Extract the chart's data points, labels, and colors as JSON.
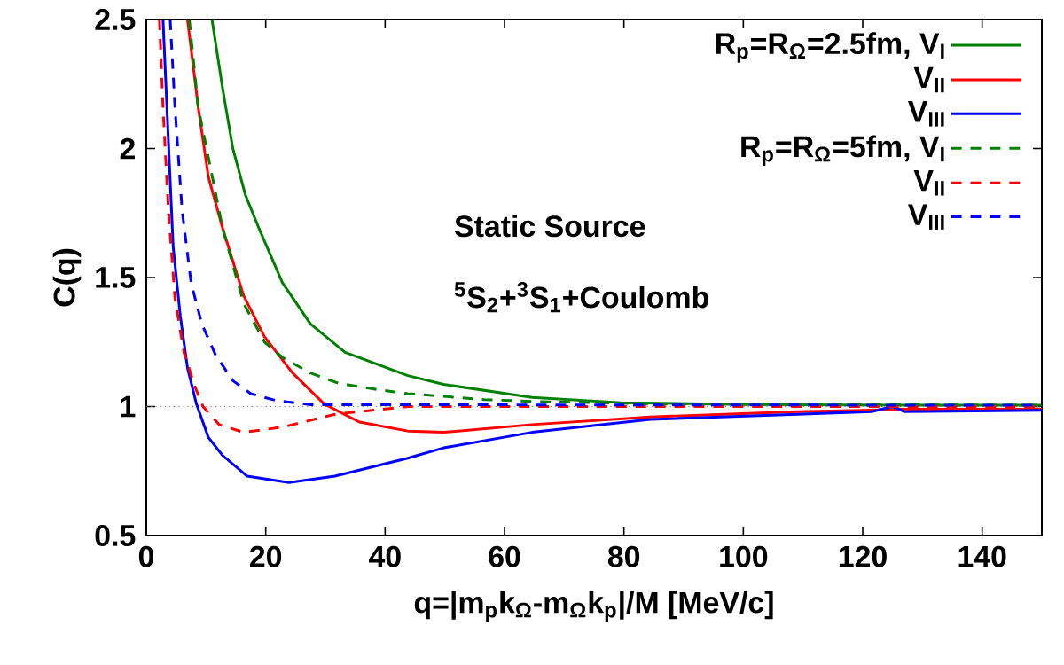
{
  "chart_data": {
    "type": "line",
    "xlabel": "q=|m$_{p}$k$_{Ω}$-m$_{Ω}$k$_{p}$|/M [MeV/c]",
    "ylabel": "C(q)",
    "xlim": [
      0,
      150
    ],
    "ylim": [
      0.5,
      2.5
    ],
    "xticks": [
      0,
      20,
      40,
      60,
      80,
      100,
      120,
      140
    ],
    "yticks": [
      0.5,
      1,
      1.5,
      2,
      2.5
    ],
    "grid": false,
    "legend": "top right",
    "annotations": [
      "Static Source",
      "$^{5}$S$_{2}$+$^{3}$S$_{1}$+Coulomb"
    ],
    "ref_lines": [
      {
        "axis": "y",
        "value": 1,
        "color": "#808080",
        "line_style": "dotted"
      }
    ],
    "series": [
      {
        "name": "R$_{p}$=R$_{Ω}$=2.5fm, V$_{I}$",
        "color": "#008000",
        "line_style": "solid",
        "x": [
          11.0,
          12.8,
          14.5,
          16.6,
          18.7,
          22.8,
          27.5,
          33.3,
          43.8,
          49.8,
          64.6,
          79.5,
          100,
          125,
          150
        ],
        "values": [
          2.5,
          2.23,
          2.0,
          1.82,
          1.7,
          1.48,
          1.32,
          1.21,
          1.12,
          1.086,
          1.035,
          1.015,
          1.008,
          1.005,
          1.005
        ]
      },
      {
        "name": "V$_{II}$",
        "color": "#ff0000",
        "line_style": "solid",
        "x": [
          6.9,
          8.7,
          10.4,
          12.8,
          16.3,
          19.8,
          24.5,
          29.8,
          35.7,
          43.8,
          49.8,
          64.6,
          84.4,
          109,
          120,
          126,
          150
        ],
        "values": [
          2.5,
          2.16,
          1.89,
          1.69,
          1.43,
          1.27,
          1.13,
          1.01,
          0.94,
          0.905,
          0.9,
          0.93,
          0.96,
          0.98,
          0.985,
          0.99,
          0.99
        ]
      },
      {
        "name": "V$_{III}$",
        "color": "#0000ff",
        "line_style": "solid",
        "x": [
          2.8,
          3.7,
          4.5,
          5.7,
          6.9,
          8.4,
          10.4,
          12.8,
          16.9,
          23.9,
          31.6,
          43.8,
          49.8,
          64.6,
          84.4,
          109,
          121.5,
          125,
          127,
          150
        ],
        "values": [
          2.5,
          2.03,
          1.62,
          1.35,
          1.15,
          1.01,
          0.88,
          0.81,
          0.73,
          0.705,
          0.73,
          0.8,
          0.84,
          0.9,
          0.95,
          0.97,
          0.98,
          1.0,
          0.98,
          0.985
        ]
      },
      {
        "name": "R$_{p}$=R$_{Ω}$=5fm, V$_{I}$",
        "color": "#008000",
        "line_style": "dashed",
        "x": [
          7.2,
          8.7,
          12.8,
          16.3,
          19.8,
          22.8,
          27.5,
          32.2,
          39.2,
          43.8,
          56.6,
          64.6,
          84.4,
          150
        ],
        "values": [
          2.5,
          2.16,
          1.69,
          1.4,
          1.25,
          1.19,
          1.13,
          1.09,
          1.064,
          1.05,
          1.027,
          1.02,
          1.01,
          1.005
        ]
      },
      {
        "name": "V$_{II}$",
        "color": "#ff0000",
        "line_style": "dashed",
        "x": [
          2.2,
          2.8,
          3.7,
          4.8,
          6.3,
          8.1,
          9.5,
          12.2,
          16.3,
          22.8,
          31.6,
          43.8,
          150
        ],
        "values": [
          2.5,
          2.16,
          1.76,
          1.42,
          1.21,
          1.08,
          1.0,
          0.93,
          0.9,
          0.92,
          0.97,
          1.0,
          1.0
        ]
      },
      {
        "name": "V$_{III}$",
        "color": "#0000ff",
        "line_style": "dashed",
        "x": [
          4.0,
          4.8,
          6.0,
          7.5,
          9.3,
          11.6,
          14.5,
          17.5,
          21.6,
          27.5,
          150
        ],
        "values": [
          2.5,
          2.16,
          1.76,
          1.48,
          1.32,
          1.2,
          1.1,
          1.05,
          1.024,
          1.007,
          1.005
        ]
      }
    ]
  }
}
